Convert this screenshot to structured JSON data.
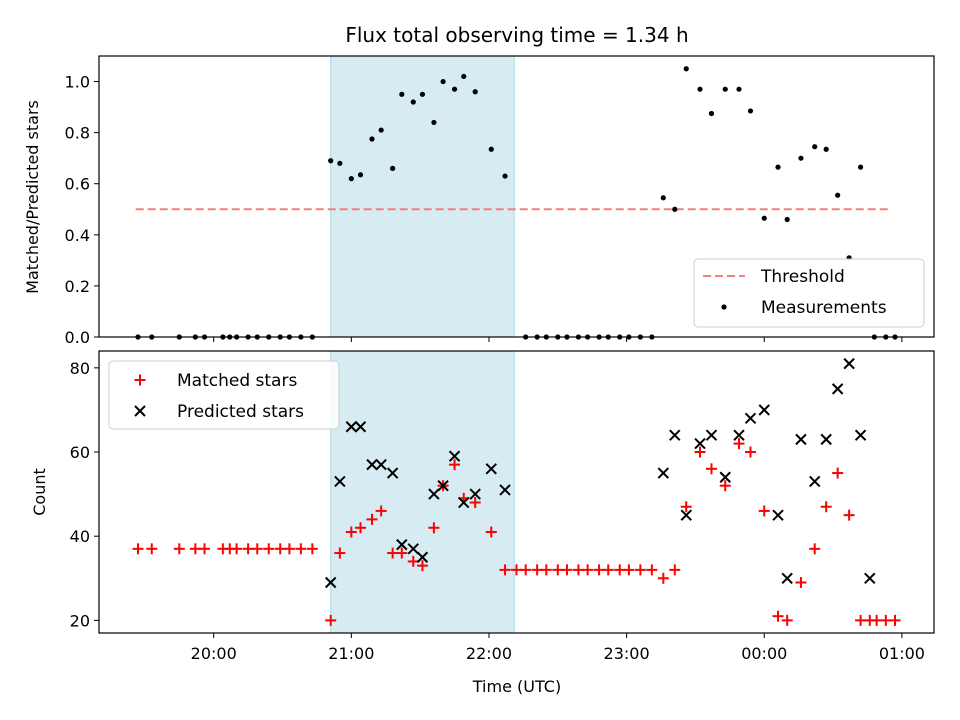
{
  "figure": {
    "title": "Flux total observing time = 1.34 h"
  },
  "chart_data": [
    {
      "type": "scatter",
      "ylabel": "Matched/Predicted stars",
      "ylim": [
        0,
        1.1
      ],
      "yticks": [
        "0.0",
        "0.2",
        "0.4",
        "0.6",
        "0.8",
        "1.0"
      ],
      "grid": false,
      "legend_position": "lower-right",
      "highlight_span": [
        "20:51",
        "22:11"
      ],
      "threshold": {
        "name": "Threshold",
        "value": 0.5,
        "x_range": [
          "19:26",
          "00:55"
        ],
        "color": "#f08080"
      },
      "series": [
        {
          "name": "Measurements",
          "color": "#000000",
          "points": [
            [
              "19:27",
              0
            ],
            [
              "19:33",
              0
            ],
            [
              "19:45",
              0
            ],
            [
              "19:52",
              0
            ],
            [
              "19:56",
              0
            ],
            [
              "20:04",
              0
            ],
            [
              "20:07",
              0
            ],
            [
              "20:10",
              0
            ],
            [
              "20:15",
              0
            ],
            [
              "20:19",
              0
            ],
            [
              "20:24",
              0
            ],
            [
              "20:29",
              0
            ],
            [
              "20:33",
              0
            ],
            [
              "20:38",
              0
            ],
            [
              "20:43",
              0
            ],
            [
              "20:51",
              0.69
            ],
            [
              "20:55",
              0.68
            ],
            [
              "21:00",
              0.62
            ],
            [
              "21:04",
              0.635
            ],
            [
              "21:09",
              0.775
            ],
            [
              "21:13",
              0.81
            ],
            [
              "21:18",
              0.66
            ],
            [
              "21:22",
              0.95
            ],
            [
              "21:27",
              0.92
            ],
            [
              "21:31",
              0.95
            ],
            [
              "21:36",
              0.84
            ],
            [
              "21:40",
              1.0
            ],
            [
              "21:45",
              0.97
            ],
            [
              "21:49",
              1.02
            ],
            [
              "21:54",
              0.96
            ],
            [
              "22:01",
              0.735
            ],
            [
              "22:07",
              0.63
            ],
            [
              "22:16",
              0
            ],
            [
              "22:21",
              0
            ],
            [
              "22:25",
              0
            ],
            [
              "22:30",
              0
            ],
            [
              "22:34",
              0
            ],
            [
              "22:39",
              0
            ],
            [
              "22:43",
              0
            ],
            [
              "22:48",
              0
            ],
            [
              "22:52",
              0
            ],
            [
              "22:57",
              0
            ],
            [
              "23:01",
              0
            ],
            [
              "23:06",
              0
            ],
            [
              "23:11",
              0
            ],
            [
              "23:16",
              0.545
            ],
            [
              "23:21",
              0.5
            ],
            [
              "23:26",
              1.05
            ],
            [
              "23:32",
              0.97
            ],
            [
              "23:37",
              0.875
            ],
            [
              "23:43",
              0.97
            ],
            [
              "23:49",
              0.97
            ],
            [
              "23:54",
              0.885
            ],
            [
              "00:00",
              0.465
            ],
            [
              "00:06",
              0.665
            ],
            [
              "00:10",
              0.46
            ],
            [
              "00:16",
              0.7
            ],
            [
              "00:22",
              0.745
            ],
            [
              "00:27",
              0.735
            ],
            [
              "00:32",
              0.555
            ],
            [
              "00:37",
              0.31
            ],
            [
              "00:42",
              0.665
            ],
            [
              "00:48",
              0
            ],
            [
              "00:53",
              0
            ],
            [
              "00:57",
              0
            ]
          ]
        }
      ]
    },
    {
      "type": "scatter",
      "xlabel": "Time (UTC)",
      "ylabel": "Count",
      "ylim": [
        17,
        84
      ],
      "yticks": [
        "20",
        "40",
        "60",
        "80"
      ],
      "xticks": [
        "20:00",
        "21:00",
        "22:00",
        "23:00",
        "00:00",
        "01:00"
      ],
      "xlim": [
        "19:10",
        "01:14"
      ],
      "grid": false,
      "legend_position": "upper-left",
      "highlight_span": [
        "20:51",
        "22:11"
      ],
      "series": [
        {
          "name": "Matched stars",
          "marker": "+",
          "color": "#ff0000",
          "points": [
            [
              "19:27",
              37
            ],
            [
              "19:33",
              37
            ],
            [
              "19:45",
              37
            ],
            [
              "19:52",
              37
            ],
            [
              "19:56",
              37
            ],
            [
              "20:04",
              37
            ],
            [
              "20:07",
              37
            ],
            [
              "20:10",
              37
            ],
            [
              "20:15",
              37
            ],
            [
              "20:19",
              37
            ],
            [
              "20:24",
              37
            ],
            [
              "20:29",
              37
            ],
            [
              "20:33",
              37
            ],
            [
              "20:38",
              37
            ],
            [
              "20:43",
              37
            ],
            [
              "20:51",
              20
            ],
            [
              "20:55",
              36
            ],
            [
              "21:00",
              41
            ],
            [
              "21:04",
              42
            ],
            [
              "21:09",
              44
            ],
            [
              "21:13",
              46
            ],
            [
              "21:18",
              36
            ],
            [
              "21:22",
              36
            ],
            [
              "21:27",
              34
            ],
            [
              "21:31",
              33
            ],
            [
              "21:36",
              42
            ],
            [
              "21:40",
              52
            ],
            [
              "21:45",
              57
            ],
            [
              "21:49",
              49
            ],
            [
              "21:54",
              48
            ],
            [
              "22:01",
              41
            ],
            [
              "22:07",
              32
            ],
            [
              "22:12",
              32
            ],
            [
              "22:16",
              32
            ],
            [
              "22:21",
              32
            ],
            [
              "22:25",
              32
            ],
            [
              "22:30",
              32
            ],
            [
              "22:34",
              32
            ],
            [
              "22:39",
              32
            ],
            [
              "22:43",
              32
            ],
            [
              "22:48",
              32
            ],
            [
              "22:52",
              32
            ],
            [
              "22:57",
              32
            ],
            [
              "23:01",
              32
            ],
            [
              "23:06",
              32
            ],
            [
              "23:11",
              32
            ],
            [
              "23:16",
              30
            ],
            [
              "23:21",
              32
            ],
            [
              "23:26",
              47
            ],
            [
              "23:32",
              60
            ],
            [
              "23:37",
              56
            ],
            [
              "23:43",
              52
            ],
            [
              "23:49",
              62
            ],
            [
              "23:54",
              60
            ],
            [
              "00:00",
              46
            ],
            [
              "00:06",
              21
            ],
            [
              "00:10",
              20
            ],
            [
              "00:16",
              29
            ],
            [
              "00:22",
              37
            ],
            [
              "00:27",
              47
            ],
            [
              "00:32",
              55
            ],
            [
              "00:37",
              45
            ],
            [
              "00:42",
              20
            ],
            [
              "00:46",
              20
            ],
            [
              "00:49",
              20
            ],
            [
              "00:53",
              20
            ],
            [
              "00:57",
              20
            ]
          ]
        },
        {
          "name": "Predicted stars",
          "marker": "x",
          "color": "#000000",
          "points": [
            [
              "20:51",
              29
            ],
            [
              "20:55",
              53
            ],
            [
              "21:00",
              66
            ],
            [
              "21:04",
              66
            ],
            [
              "21:09",
              57
            ],
            [
              "21:13",
              57
            ],
            [
              "21:18",
              55
            ],
            [
              "21:22",
              38
            ],
            [
              "21:27",
              37
            ],
            [
              "21:31",
              35
            ],
            [
              "21:36",
              50
            ],
            [
              "21:40",
              52
            ],
            [
              "21:45",
              59
            ],
            [
              "21:49",
              48
            ],
            [
              "21:54",
              50
            ],
            [
              "22:01",
              56
            ],
            [
              "22:07",
              51
            ],
            [
              "23:16",
              55
            ],
            [
              "23:21",
              64
            ],
            [
              "23:26",
              45
            ],
            [
              "23:32",
              62
            ],
            [
              "23:37",
              64
            ],
            [
              "23:43",
              54
            ],
            [
              "23:49",
              64
            ],
            [
              "23:54",
              68
            ],
            [
              "00:00",
              70
            ],
            [
              "00:06",
              45
            ],
            [
              "00:10",
              30
            ],
            [
              "00:16",
              63
            ],
            [
              "00:22",
              53
            ],
            [
              "00:27",
              63
            ],
            [
              "00:32",
              75
            ],
            [
              "00:37",
              81
            ],
            [
              "00:42",
              64
            ],
            [
              "00:46",
              30
            ]
          ]
        }
      ]
    }
  ]
}
